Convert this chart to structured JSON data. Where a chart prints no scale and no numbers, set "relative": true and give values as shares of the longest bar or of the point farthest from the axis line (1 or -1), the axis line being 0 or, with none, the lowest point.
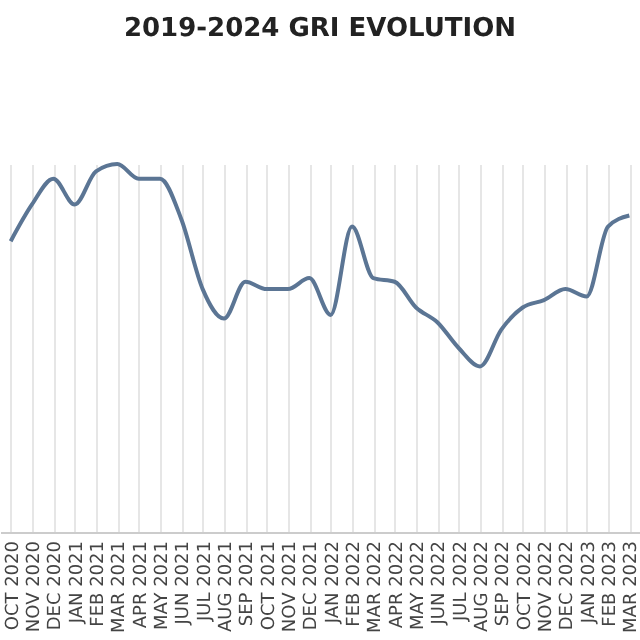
{
  "chart_data": {
    "type": "line",
    "title": "2019-2024 GRI EVOLUTION",
    "relative": true,
    "grid": "x",
    "marker": "none",
    "categories": [
      "OCT 2020",
      "NOV 2020",
      "DEC 2020",
      "JAN 2021",
      "FEB 2021",
      "MAR 2021",
      "APR 2021",
      "MAY 2021",
      "JUN 2021",
      "JUL 2021",
      "AUG 2021",
      "SEP 2021",
      "OCT 2021",
      "NOV 2021",
      "DEC 2021",
      "JAN 2022",
      "FEB 2022",
      "MAR 2022",
      "APR 2022",
      "MAY 2022",
      "JUN 2022",
      "JUL 2022",
      "AUG 2022",
      "SEP 2022",
      "OCT 2022",
      "NOV 2022",
      "DEC 2022",
      "JAN 2023",
      "FEB 2023",
      "MAR 2023"
    ],
    "series": [
      {
        "color": "#5b7594",
        "values": [
          0.79,
          0.89,
          0.96,
          0.89,
          0.98,
          1,
          0.96,
          0.96,
          0.85,
          0.66,
          0.58,
          0.68,
          0.66,
          0.66,
          0.69,
          0.59,
          0.83,
          0.69,
          0.68,
          0.61,
          0.57,
          0.5,
          0.45,
          0.55,
          0.61,
          0.63,
          0.66,
          0.64,
          0.83,
          0.86
        ]
      }
    ]
  }
}
